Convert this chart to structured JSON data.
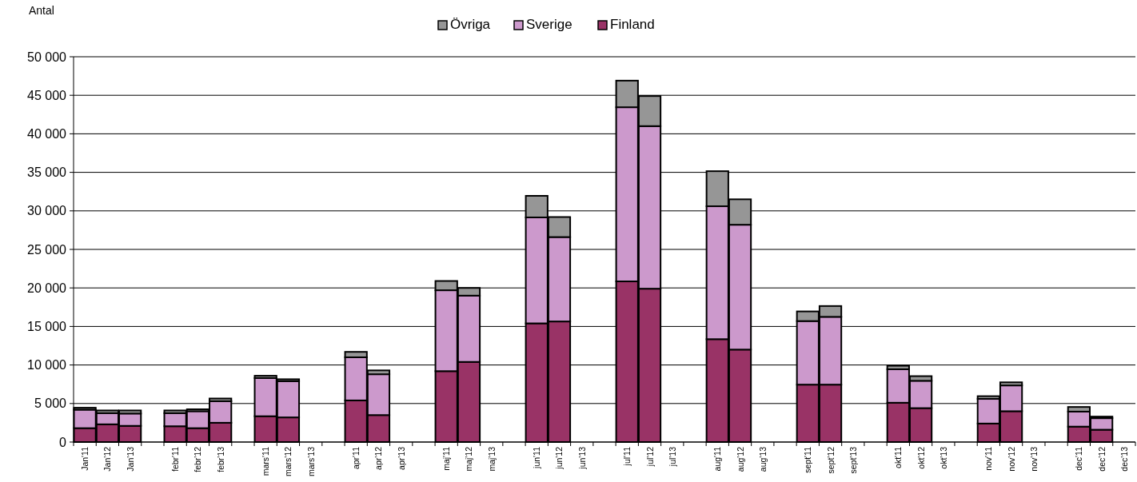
{
  "chart_data": {
    "type": "bar",
    "stacked": true,
    "ylabel": "Antal",
    "legend": "top",
    "grid": "y",
    "categories": [
      "Jan'11",
      "Jan'12",
      "Jan'13",
      null,
      "febr'11",
      "febr'12",
      "febr'13",
      null,
      "mars'11",
      "mars'12",
      "mars'13",
      null,
      "apr'11",
      "apr'12",
      "apr'13",
      null,
      "maj'11",
      "maj'12",
      "maj'13",
      null,
      "jun'11",
      "jun'12",
      "jun'13",
      null,
      "jul'11",
      "jul'12",
      "jul'13",
      null,
      "aug'11",
      "aug'12",
      "aug'13",
      null,
      "sept'11",
      "sept'12",
      "sept'13",
      null,
      "okt'11",
      "okt'12",
      "okt'13",
      null,
      "nov'11",
      "nov'12",
      "nov'13",
      null,
      "dec'11",
      "dec'12",
      "dec'13"
    ],
    "series": [
      {
        "name": "Finland",
        "color": "#993366",
        "values": [
          1800,
          2300,
          2100,
          null,
          2050,
          1800,
          2500,
          null,
          3350,
          3200,
          null,
          null,
          5400,
          3500,
          null,
          null,
          9200,
          10400,
          null,
          null,
          15400,
          15650,
          null,
          null,
          20850,
          19900,
          null,
          null,
          13350,
          12000,
          null,
          null,
          7450,
          7450,
          null,
          null,
          5100,
          4400,
          null,
          null,
          2400,
          4000,
          null,
          null,
          2000,
          1600,
          null
        ]
      },
      {
        "name": "Sverige",
        "color": "#cc99cc",
        "values": [
          2400,
          1450,
          1600,
          null,
          1700,
          2200,
          2800,
          null,
          4950,
          4700,
          null,
          null,
          5600,
          5300,
          null,
          null,
          10500,
          8600,
          null,
          null,
          13750,
          10950,
          null,
          null,
          22600,
          21100,
          null,
          null,
          17250,
          16200,
          null,
          null,
          8250,
          8800,
          null,
          null,
          4350,
          3550,
          null,
          null,
          3200,
          3350,
          null,
          null,
          1950,
          1500,
          null
        ]
      },
      {
        "name": "Övriga",
        "color": "#969696",
        "values": [
          250,
          350,
          400,
          null,
          350,
          250,
          350,
          null,
          300,
          250,
          null,
          null,
          700,
          500,
          null,
          null,
          1200,
          1000,
          null,
          null,
          2800,
          2600,
          null,
          null,
          3450,
          3900,
          null,
          null,
          4550,
          3300,
          null,
          null,
          1250,
          1400,
          null,
          null,
          450,
          600,
          null,
          null,
          350,
          400,
          null,
          null,
          600,
          200,
          null
        ]
      }
    ],
    "ylim": [
      0,
      50000
    ],
    "yticks": [
      0,
      {
        "value": 5000,
        "label": "5 000"
      },
      {
        "value": 10000,
        "label": "10 000"
      },
      {
        "value": 15000,
        "label": "15 000"
      },
      {
        "value": 20000,
        "label": "20 000"
      },
      {
        "value": 25000,
        "label": "25 000"
      },
      {
        "value": 30000,
        "label": "30 000"
      },
      {
        "value": 35000,
        "label": "35 000"
      },
      {
        "value": 40000,
        "label": "40 000"
      },
      {
        "value": 45000,
        "label": "45 000"
      },
      {
        "value": 50000,
        "label": "50 000"
      }
    ]
  }
}
